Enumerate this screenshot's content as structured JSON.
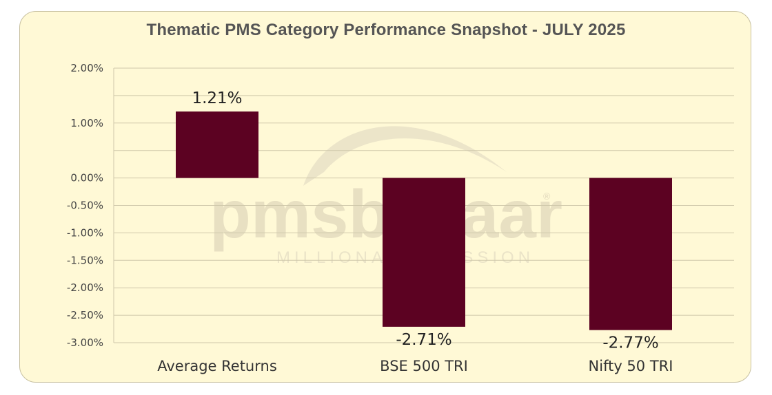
{
  "chart_data": {
    "type": "bar",
    "title": "Thematic PMS Category Performance Snapshot - JULY 2025",
    "categories": [
      "Average Returns",
      "BSE 500 TRI",
      "Nifty 50 TRI"
    ],
    "values": [
      1.21,
      -2.71,
      -2.77
    ],
    "data_labels": [
      "1.21%",
      "-2.71%",
      "-2.77%"
    ],
    "ylim": [
      -3.0,
      2.0
    ],
    "yticks": [
      2.0,
      1.5,
      1.0,
      0.5,
      0.0,
      -0.5,
      -1.0,
      -1.5,
      -2.0,
      -2.5,
      -3.0
    ],
    "ytick_labels": [
      "2.00%",
      "",
      "1.00%",
      "",
      "0.00%",
      "-0.50%",
      "-1.00%",
      "-1.50%",
      "-2.00%",
      "-2.50%",
      "-3.00%"
    ],
    "grid": true,
    "bar_color": "#5c0222"
  },
  "watermark": {
    "brand": "pmsbazaar",
    "tagline": "MILLIONAIRE MISSION",
    "registered": "®"
  }
}
